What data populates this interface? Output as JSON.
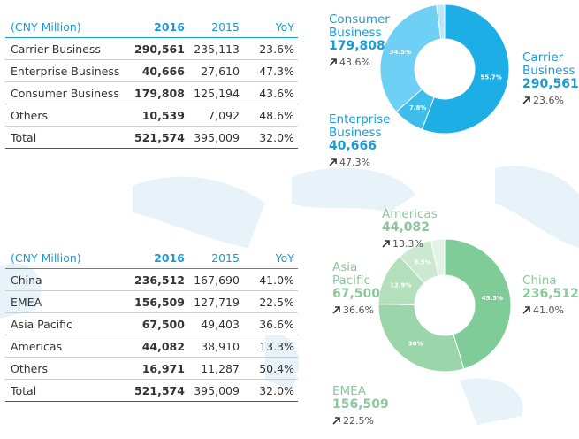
{
  "table_top": {
    "header": [
      "(CNY Million)",
      "2016",
      "2015",
      "YoY"
    ],
    "rows": [
      [
        "Carrier Business",
        "290,561",
        "235,113",
        "23.6%"
      ],
      [
        "Enterprise Business",
        "40,666",
        "27,610",
        "47.3%"
      ],
      [
        "Consumer Business",
        "179,808",
        "125,194",
        "43.6%"
      ],
      [
        "Others",
        "10,539",
        "7,092",
        "48.6%"
      ],
      [
        "Total",
        "521,574",
        "395,009",
        "32.0%"
      ]
    ]
  },
  "table_bottom": {
    "header": [
      "(CNY Million)",
      "2016",
      "2015",
      "YoY"
    ],
    "rows": [
      [
        "China",
        "236,512",
        "167,690",
        "41.0%"
      ],
      [
        "EMEA",
        "156,509",
        "127,719",
        "22.5%"
      ],
      [
        "Asia Pacific",
        "67,500",
        "49,403",
        "36.6%"
      ],
      [
        "Americas",
        "44,082",
        "38,910",
        "13.3%"
      ],
      [
        "Others",
        "16,971",
        "11,287",
        "50.4%"
      ],
      [
        "Total",
        "521,574",
        "395,009",
        "32.0%"
      ]
    ]
  },
  "donut_top": {
    "values": [
      55.7,
      7.8,
      34.5,
      2.0
    ],
    "value_labels": [
      "55.7%",
      "7.8%",
      "34.5%",
      null
    ],
    "colors": [
      "#1daee6",
      "#3fbdea",
      "#6fd0f6",
      "#b8e6fa"
    ]
  },
  "donut_bottom": {
    "values": [
      45.3,
      30,
      12.9,
      8.5,
      3.3
    ],
    "value_labels": [
      "45.3%",
      "30%",
      "12.9%",
      "8.5%",
      null
    ],
    "colors": [
      "#80cc99",
      "#9bd6aa",
      "#b3dfbd",
      "#cbe9d0",
      "#e2f3e5"
    ]
  },
  "callouts_top": [
    {
      "name": "Consumer Business",
      "value": "179,808",
      "change": "43.6%"
    },
    {
      "name": "Enterprise Business",
      "value": "40,666",
      "change": "47.3%"
    },
    {
      "name": "Carrier Business",
      "value": "290,561",
      "change": "23.6%"
    }
  ],
  "callouts_bottom": [
    {
      "name": "Americas",
      "value": "44,082",
      "change": "13.3%"
    },
    {
      "name": "Asia Pacific",
      "value": "67,500",
      "change": "36.6%"
    },
    {
      "name": "China",
      "value": "236,512",
      "change": "41.0%"
    },
    {
      "name": "EMEA",
      "value": "156,509",
      "change": "22.5%"
    }
  ]
}
